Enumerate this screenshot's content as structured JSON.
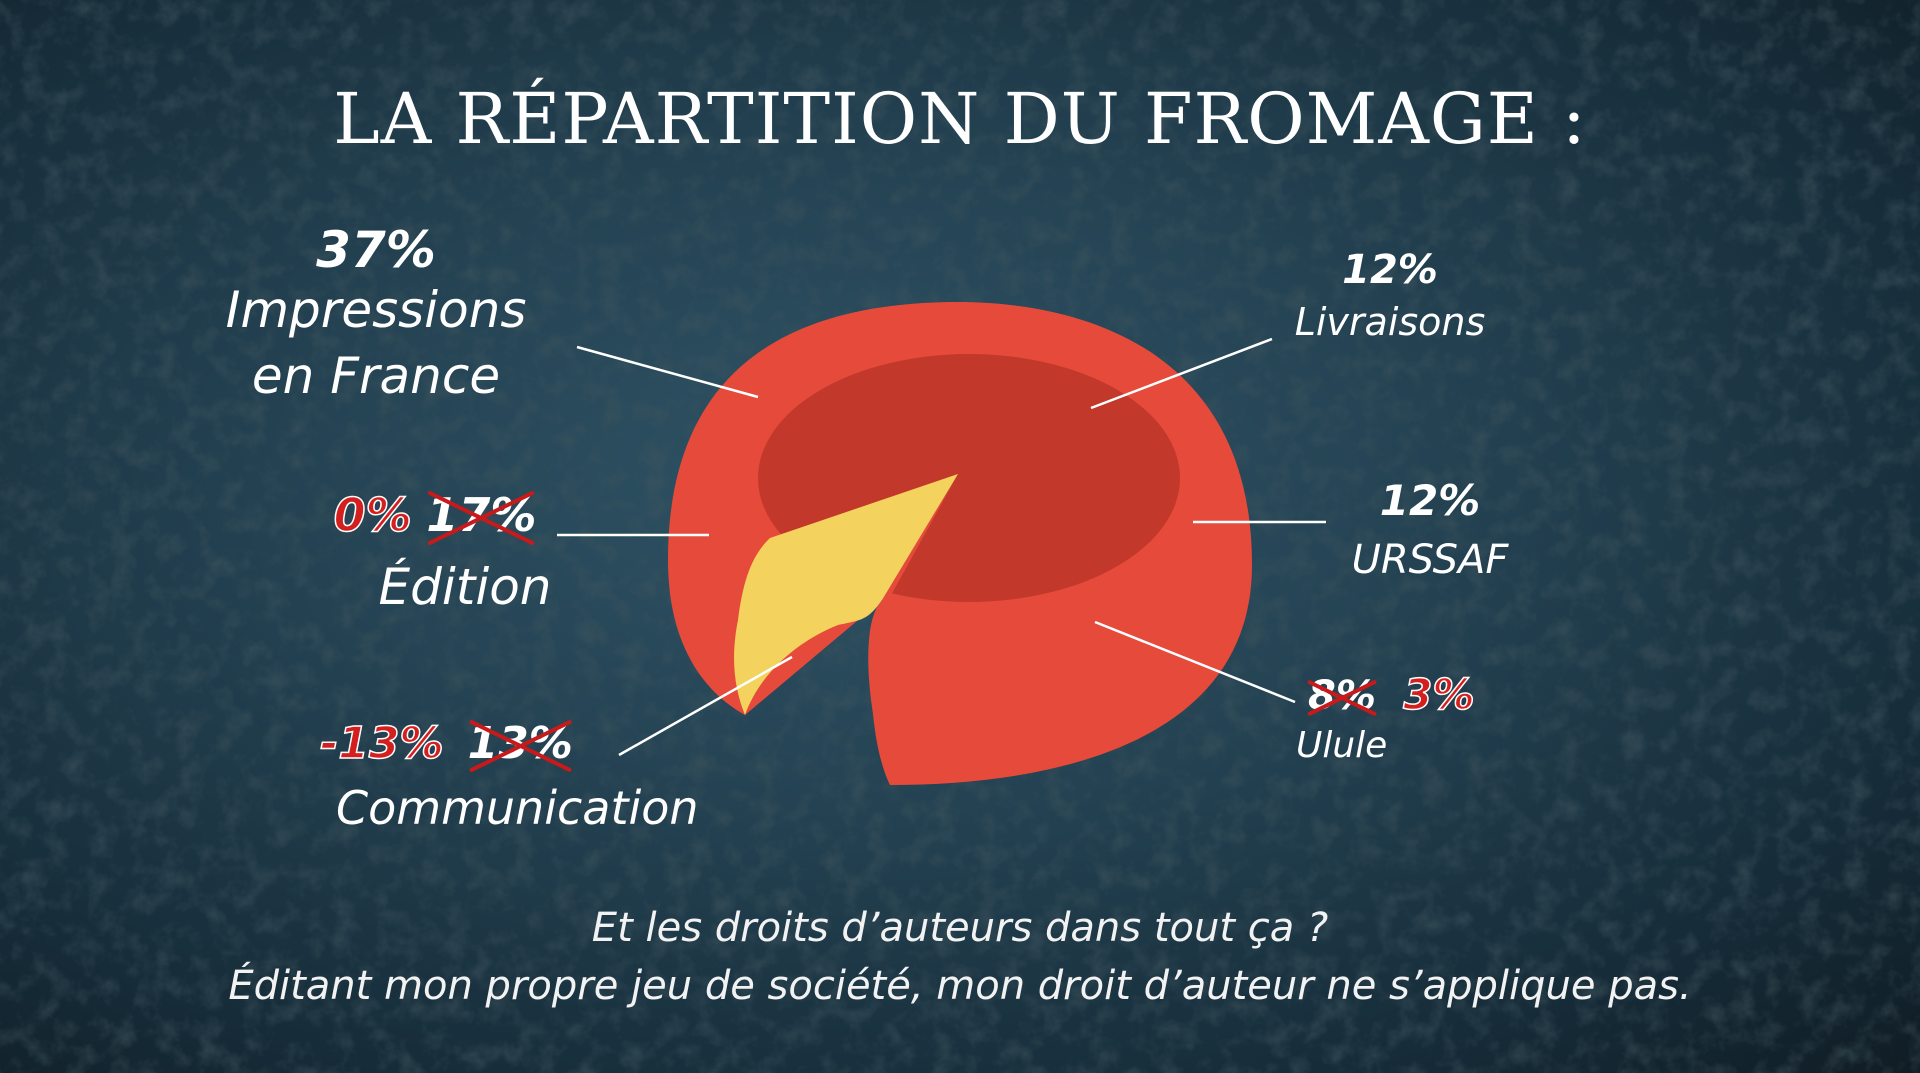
{
  "title": "LA RÉPARTITION DU FROMAGE :",
  "chart_data": {
    "type": "pie",
    "style": "cheese wheel with one wedge cut out",
    "title": "LA RÉPARTITION DU FROMAGE :",
    "slices": [
      {
        "label": "Impressions en France",
        "value": 37,
        "display": "37%"
      },
      {
        "label": "Livraisons",
        "value": 12,
        "display": "12%"
      },
      {
        "label": "URSSAF",
        "value": 12,
        "display": "12%"
      },
      {
        "label": "Ulule",
        "value": 3,
        "previous_value": 8,
        "display": "3%",
        "previous_display": "8%"
      },
      {
        "label": "Édition",
        "value": 0,
        "previous_value": 17,
        "display": "0%",
        "previous_display": "17%"
      },
      {
        "label": "Communication",
        "value": -13,
        "previous_value": 13,
        "display": "-13%",
        "previous_display": "13%"
      }
    ],
    "colors": {
      "rind": "#e64a3b",
      "top": "#c2392c",
      "wedge": "#f3d35e"
    }
  },
  "labels": {
    "impressions": {
      "pct": "37%",
      "name1": "Impressions",
      "name2": "en France"
    },
    "livraisons": {
      "pct": "12%",
      "name": "Livraisons"
    },
    "urssaf": {
      "pct": "12%",
      "name": "URSSAF"
    },
    "ulule": {
      "old": "8%",
      "new": "3%",
      "name": "Ulule"
    },
    "edition": {
      "new": "0%",
      "old": "17%",
      "name": "Édition"
    },
    "communication": {
      "new": "-13%",
      "old": "13%",
      "name": "Communication"
    }
  },
  "caption": {
    "line1": "Et les droits d’auteurs dans tout ça ?",
    "line2": "Éditant mon propre jeu de société, mon droit d’auteur ne s’applique pas."
  }
}
